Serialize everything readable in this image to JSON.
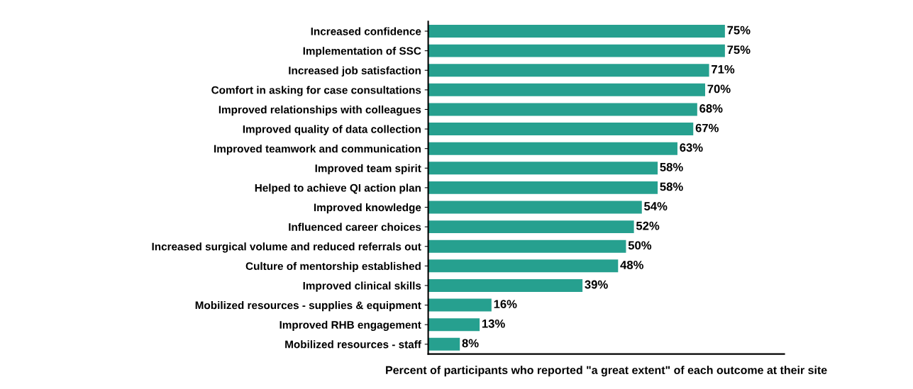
{
  "chart_data": {
    "type": "bar",
    "orientation": "horizontal",
    "categories": [
      "Increased confidence",
      "Implementation of SSC",
      "Increased job satisfaction",
      "Comfort in asking for case consultations",
      "Improved relationships with colleagues",
      "Improved quality of data collection",
      "Improved teamwork and communication",
      "Improved team spirit",
      "Helped to achieve QI action plan",
      "Improved knowledge",
      "Influenced career choices",
      "Increased surgical volume and reduced referrals out",
      "Culture of mentorship established",
      "Improved clinical skills",
      "Mobilized resources - supplies & equipment",
      "Improved RHB engagement",
      "Mobilized resources - staff"
    ],
    "values": [
      75,
      75,
      71,
      70,
      68,
      67,
      63,
      58,
      58,
      54,
      52,
      50,
      48,
      39,
      16,
      13,
      8
    ],
    "value_labels": [
      "75%",
      "75%",
      "71%",
      "70%",
      "68%",
      "67%",
      "63%",
      "58%",
      "58%",
      "54%",
      "52%",
      "50%",
      "48%",
      "39%",
      "16%",
      "13%",
      "8%"
    ],
    "color": "#26a08f",
    "xlim": [
      0,
      90
    ],
    "tick_labels": "y",
    "xlabel": "Percent of participants who reported \"a great extent\" of each outcome at their site",
    "grid": false,
    "legend": false
  }
}
